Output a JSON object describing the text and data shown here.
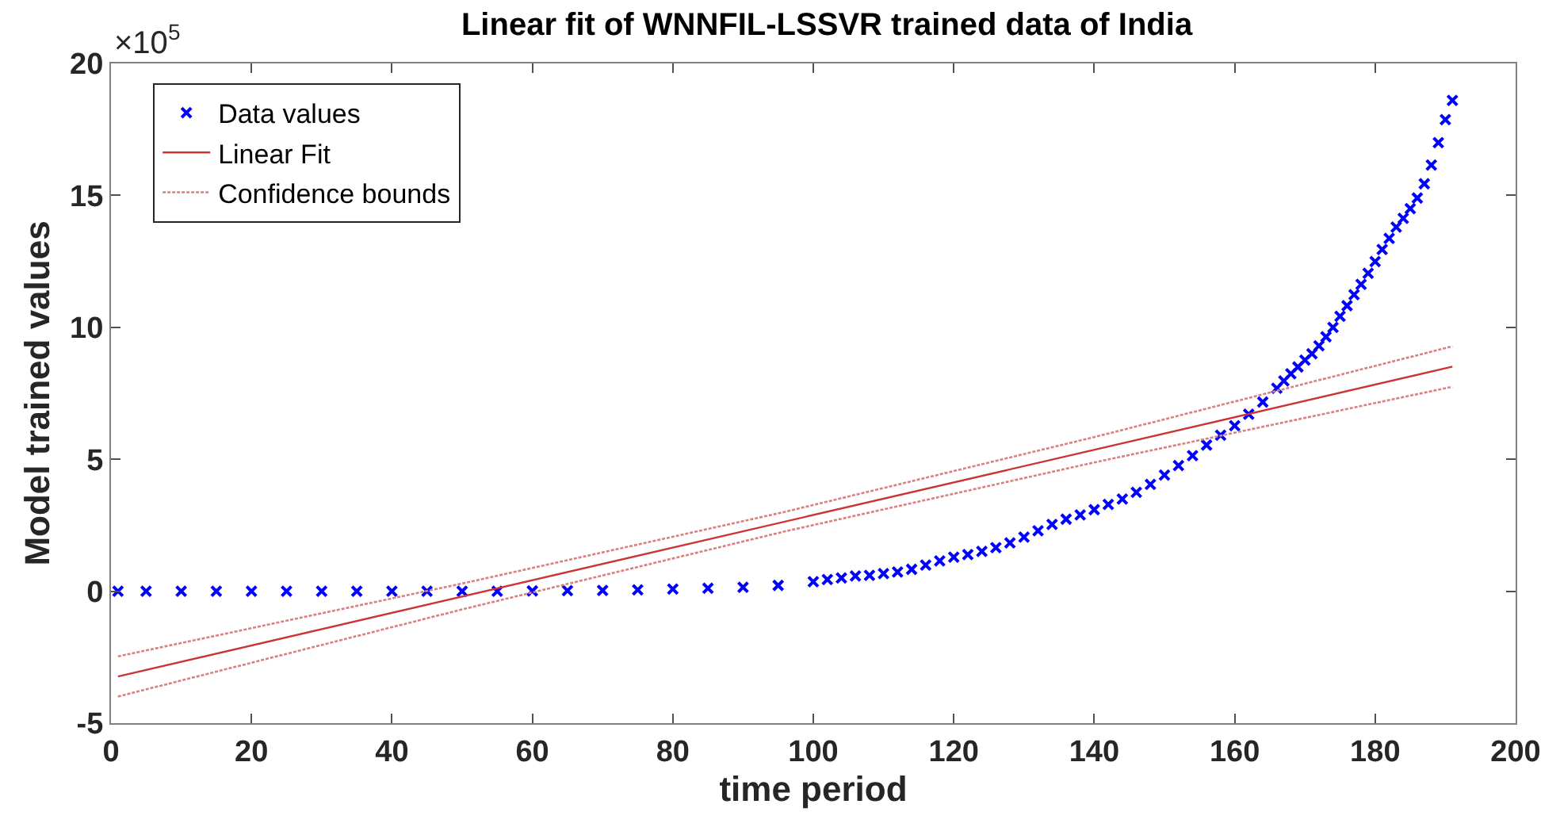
{
  "chart_data": {
    "type": "scatter",
    "title": "Linear fit of WNNFIL-LSSVR trained data of India",
    "xlabel": "time period",
    "ylabel": "Model trained values",
    "annotations": [
      "×10$^{5}$"
    ],
    "xlim": [
      0,
      200
    ],
    "xticks": [
      0,
      20,
      40,
      60,
      80,
      100,
      120,
      140,
      160,
      180,
      200
    ],
    "ylim": [
      -5,
      20
    ],
    "yticks": [
      -5,
      0,
      5,
      10,
      15,
      20
    ],
    "legend": "top left",
    "series": [
      {
        "name": "Data values",
        "marker": "cross",
        "color": "#0000ff",
        "x": [
          1,
          5,
          10,
          15,
          20,
          25,
          30,
          35,
          40,
          45,
          50,
          55,
          60,
          65,
          70,
          75,
          80,
          85,
          90,
          95,
          100,
          102,
          104,
          106,
          108,
          110,
          112,
          114,
          116,
          118,
          120,
          122,
          124,
          126,
          128,
          130,
          132,
          134,
          136,
          138,
          140,
          142,
          144,
          146,
          148,
          150,
          152,
          154,
          156,
          158,
          160,
          162,
          164,
          166,
          167,
          168,
          169,
          170,
          171,
          172,
          173,
          174,
          175,
          176,
          177,
          178,
          179,
          180,
          181,
          182,
          183,
          184,
          185,
          186,
          187,
          188,
          189,
          190,
          191
        ],
        "values": [
          0,
          0,
          0,
          0,
          0,
          0,
          0,
          0,
          0,
          0,
          0,
          0,
          0.01,
          0.02,
          0.03,
          0.05,
          0.08,
          0.11,
          0.15,
          0.22,
          0.36,
          0.44,
          0.5,
          0.58,
          0.6,
          0.67,
          0.73,
          0.83,
          0.99,
          1.15,
          1.29,
          1.39,
          1.51,
          1.65,
          1.83,
          2.05,
          2.29,
          2.53,
          2.73,
          2.89,
          3.09,
          3.29,
          3.49,
          3.75,
          4.05,
          4.4,
          4.76,
          5.14,
          5.54,
          5.91,
          6.27,
          6.71,
          7.17,
          7.69,
          7.97,
          8.24,
          8.5,
          8.76,
          9.0,
          9.3,
          9.64,
          10.0,
          10.42,
          10.82,
          11.24,
          11.63,
          12.05,
          12.49,
          12.95,
          13.37,
          13.8,
          14.13,
          14.5,
          14.9,
          15.44,
          16.15,
          17.0,
          17.87,
          18.6
        ]
      },
      {
        "name": "Linear Fit",
        "type": "line",
        "line_style": "solid",
        "color": "#cc3333",
        "x": [
          1,
          191
        ],
        "values": [
          -3.23,
          8.51
        ]
      },
      {
        "name": "Confidence bounds",
        "type": "line",
        "line_style": "dotted",
        "color": "#d98080",
        "x": [
          1,
          50,
          96,
          140,
          191
        ],
        "values": [
          -2.47,
          0.29,
          3.01,
          5.84,
          9.28
        ]
      },
      {
        "type": "line",
        "line_style": "dotted",
        "color": "#d98080",
        "x": [
          1,
          50,
          96,
          140,
          191
        ],
        "values": [
          -3.99,
          -0.69,
          2.27,
          4.88,
          7.75
        ]
      }
    ]
  }
}
